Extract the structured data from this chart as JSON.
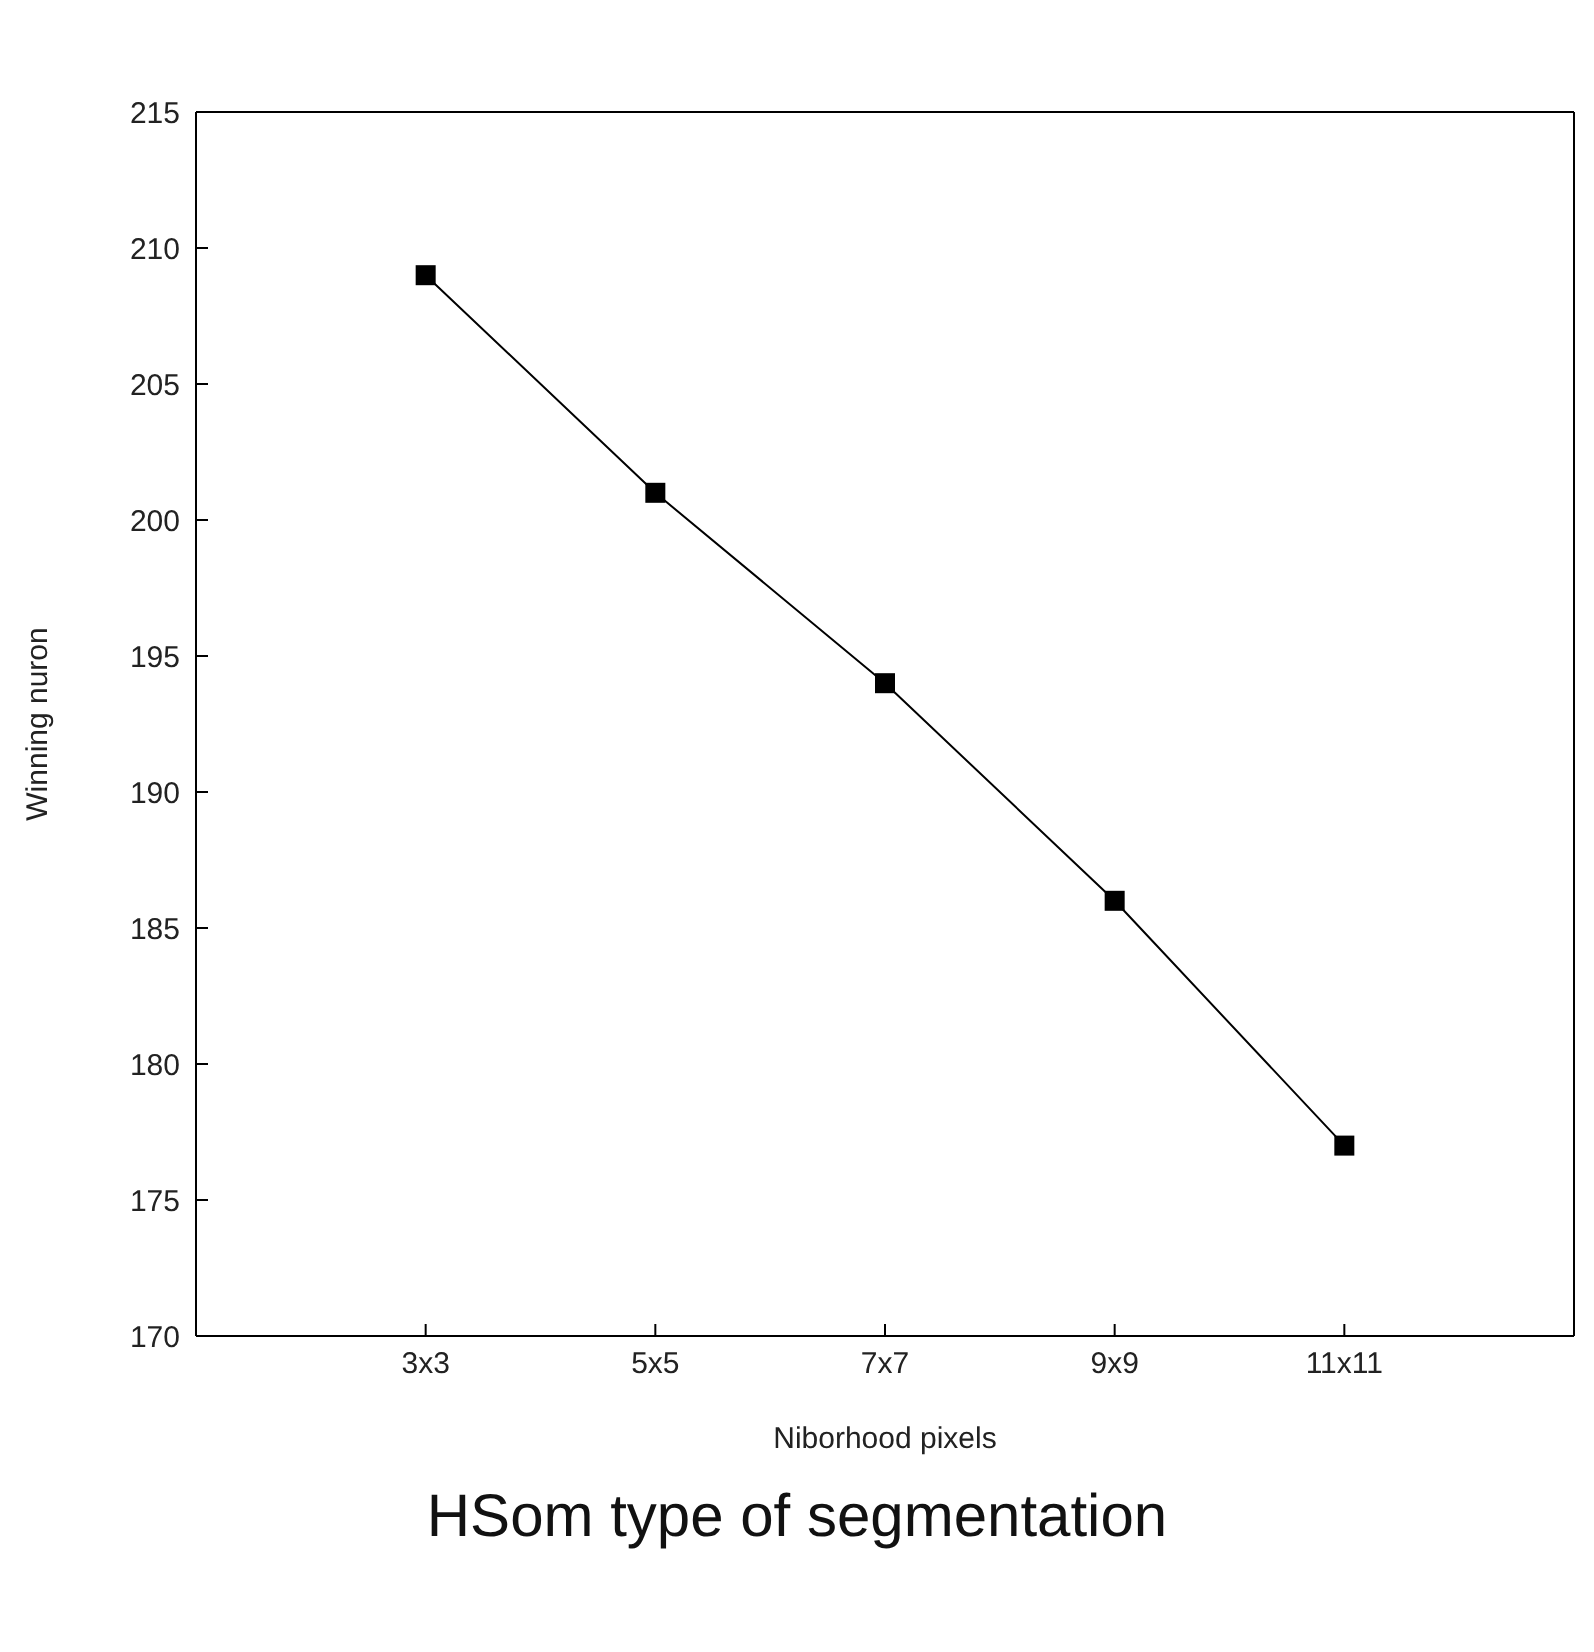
{
  "chart_data": {
    "type": "line",
    "title": "HSom type of segmentation",
    "xlabel": "Niborhood pixels",
    "ylabel": "Winning nuron",
    "categories": [
      "3x3",
      "5x5",
      "7x7",
      "9x9",
      "11x11"
    ],
    "series": [
      {
        "color": "#000000",
        "values": [
          209,
          201,
          194,
          186,
          177
        ]
      }
    ],
    "ylim": [
      170,
      215
    ],
    "yticks": [
      170,
      175,
      180,
      185,
      190,
      195,
      200,
      205,
      210,
      215
    ],
    "marker": "square",
    "line_style": "solid",
    "grid": false,
    "legend": false
  }
}
